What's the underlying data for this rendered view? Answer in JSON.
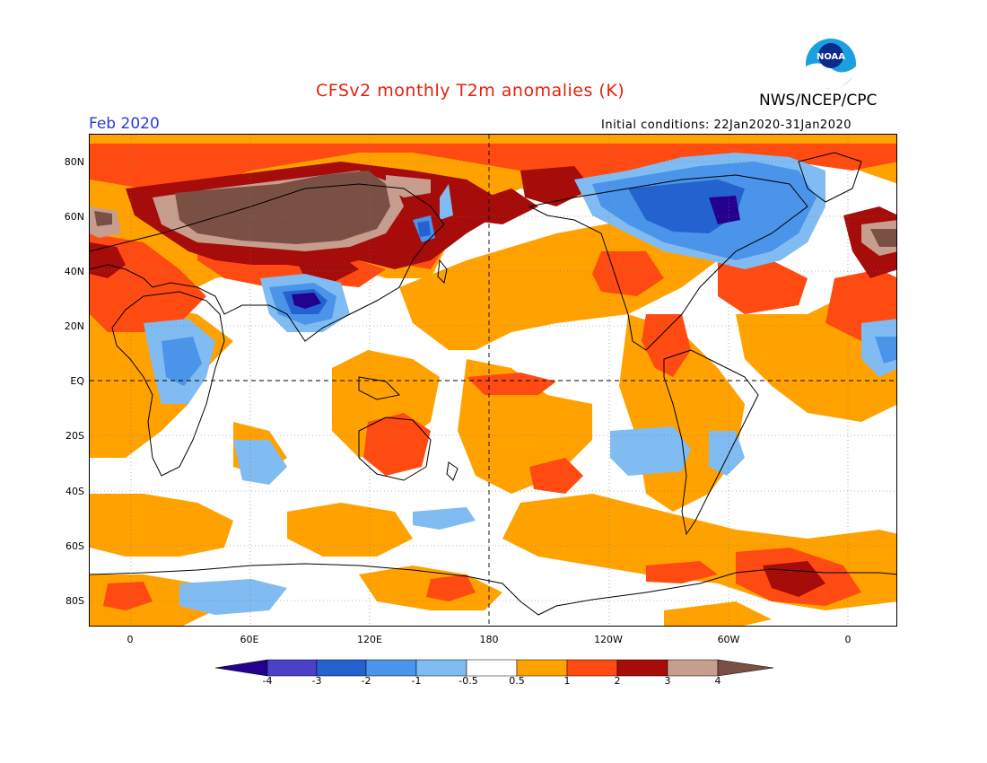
{
  "header": {
    "title": "CFSv2 monthly T2m anomalies (K)",
    "agency": "NWS/NCEP/CPC",
    "logo_text": "NOAA",
    "month": "Feb 2020",
    "initial_conditions": "Initial conditions: 22Jan2020-31Jan2020"
  },
  "axes": {
    "lat_labels": [
      "80N",
      "60N",
      "40N",
      "20N",
      "EQ",
      "20S",
      "40S",
      "60S",
      "80S"
    ],
    "lon_labels": [
      "0",
      "60E",
      "120E",
      "180",
      "120W",
      "60W",
      "0"
    ]
  },
  "colorbar": {
    "labels": [
      "-4",
      "-3",
      "-2",
      "-1",
      "-0.5",
      "0.5",
      "1",
      "2",
      "3",
      "4"
    ],
    "colors": [
      "#24008f",
      "#4c40c8",
      "#2462d0",
      "#4a94ea",
      "#80bcf2",
      "#ffffff",
      "#ffa200",
      "#ff4a12",
      "#a50c0a",
      "#c79e8e",
      "#7a5044"
    ]
  },
  "palette": {
    "warm_light": "#ffa200",
    "warm_mid": "#ff4a12",
    "warm_dark": "#a50c0a",
    "warm_pink": "#c79e8e",
    "warm_brown": "#7a5044",
    "cool_light": "#80bcf2",
    "cool_mid": "#4a94ea",
    "cool_dark": "#2462d0",
    "cool_deep": "#24008f"
  }
}
